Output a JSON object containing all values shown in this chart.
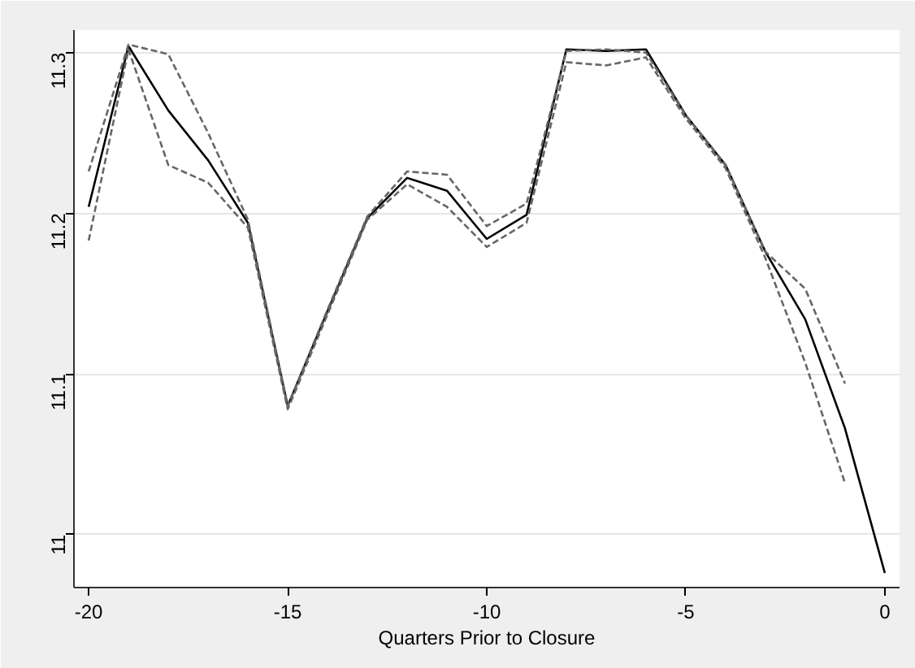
{
  "chart_data": {
    "type": "line",
    "xlabel": "Quarters Prior to Closure",
    "xlim": [
      -20.37,
      0.37
    ],
    "ylim": [
      10.967,
      11.314
    ],
    "xticks": [
      -20,
      -15,
      -10,
      -5,
      0
    ],
    "yticks": [
      11,
      11.1,
      11.2,
      11.3
    ],
    "grid": "y",
    "marker": "none",
    "series": [
      {
        "color": "#000000",
        "line_style": "solid",
        "x": [
          -20,
          -19,
          -18,
          -17,
          -16,
          -15,
          -14,
          -13,
          -12,
          -11,
          -10,
          -9,
          -8,
          -7,
          -6,
          -5,
          -4,
          -3,
          -2,
          -1,
          0
        ],
        "values": [
          11.204,
          11.304,
          11.264,
          11.233,
          11.194,
          11.08,
          11.139,
          11.197,
          11.222,
          11.214,
          11.184,
          11.199,
          11.302,
          11.301,
          11.302,
          11.261,
          11.23,
          11.176,
          11.134,
          11.066,
          10.976
        ]
      },
      {
        "color": "#666666",
        "line_style": "dashed",
        "x": [
          -20,
          -19,
          -18,
          -17,
          -16,
          -15,
          -14,
          -13,
          -12,
          -11,
          -10,
          -9,
          -8,
          -7,
          -6,
          -5,
          -4,
          -3,
          -2,
          -1
        ],
        "values": [
          11.226,
          11.305,
          11.299,
          11.25,
          11.196,
          11.08,
          11.14,
          11.198,
          11.226,
          11.224,
          11.192,
          11.206,
          11.301,
          11.302,
          11.3,
          11.261,
          11.23,
          11.176,
          11.153,
          11.094
        ]
      },
      {
        "color": "#666666",
        "line_style": "dashed",
        "x": [
          -20,
          -19,
          -18,
          -17,
          -16,
          -15,
          -14,
          -13,
          -12,
          -11,
          -10,
          -9,
          -8,
          -7,
          -6,
          -5,
          -4,
          -3,
          -2,
          -1
        ],
        "values": [
          11.183,
          11.302,
          11.23,
          11.219,
          11.191,
          11.078,
          11.137,
          11.196,
          11.218,
          11.204,
          11.179,
          11.194,
          11.294,
          11.292,
          11.297,
          11.259,
          11.228,
          11.172,
          11.107,
          11.032
        ]
      }
    ]
  }
}
